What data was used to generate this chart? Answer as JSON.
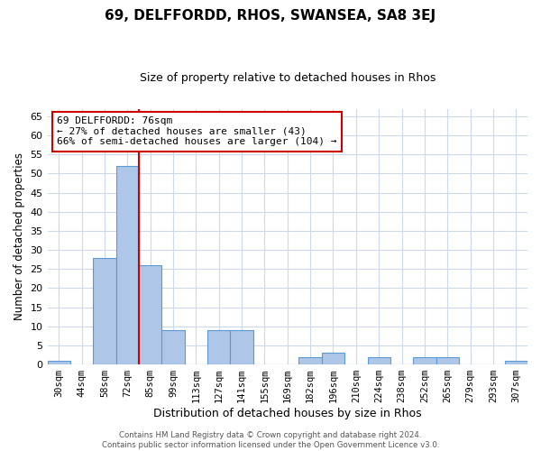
{
  "title": "69, DELFFORDD, RHOS, SWANSEA, SA8 3EJ",
  "subtitle": "Size of property relative to detached houses in Rhos",
  "xlabel": "Distribution of detached houses by size in Rhos",
  "ylabel": "Number of detached properties",
  "categories": [
    "30sqm",
    "44sqm",
    "58sqm",
    "72sqm",
    "85sqm",
    "99sqm",
    "113sqm",
    "127sqm",
    "141sqm",
    "155sqm",
    "169sqm",
    "182sqm",
    "196sqm",
    "210sqm",
    "224sqm",
    "238sqm",
    "252sqm",
    "265sqm",
    "279sqm",
    "293sqm",
    "307sqm"
  ],
  "values": [
    1,
    0,
    28,
    52,
    26,
    9,
    0,
    9,
    9,
    0,
    0,
    2,
    3,
    0,
    2,
    0,
    2,
    2,
    0,
    0,
    1
  ],
  "bar_color": "#aec6e8",
  "bar_edge_color": "#5b9bd5",
  "vline_x_index": 3,
  "vline_color": "#cc0000",
  "annotation_text": "69 DELFFORDD: 76sqm\n← 27% of detached houses are smaller (43)\n66% of semi-detached houses are larger (104) →",
  "annotation_box_color": "white",
  "annotation_box_edge": "#cc0000",
  "ylim": [
    0,
    67
  ],
  "yticks": [
    0,
    5,
    10,
    15,
    20,
    25,
    30,
    35,
    40,
    45,
    50,
    55,
    60,
    65
  ],
  "footer": "Contains HM Land Registry data © Crown copyright and database right 2024.\nContains public sector information licensed under the Open Government Licence v3.0.",
  "background_color": "#ffffff",
  "grid_color": "#ccd9e8",
  "title_fontsize": 11,
  "subtitle_fontsize": 9,
  "ylabel_fontsize": 8.5,
  "xlabel_fontsize": 9,
  "tick_fontsize": 8,
  "xtick_fontsize": 7.5
}
